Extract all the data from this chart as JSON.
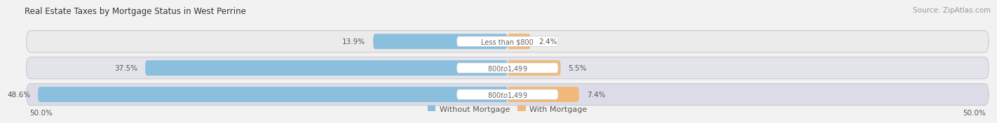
{
  "title": "Real Estate Taxes by Mortgage Status in West Perrine",
  "source": "Source: ZipAtlas.com",
  "rows": [
    {
      "label": "Less than $800",
      "without_mortgage": 13.9,
      "with_mortgage": 2.4
    },
    {
      "label": "$800 to $1,499",
      "without_mortgage": 37.5,
      "with_mortgage": 5.5
    },
    {
      "label": "$800 to $1,499",
      "without_mortgage": 48.6,
      "with_mortgage": 7.4
    }
  ],
  "x_min": -50.0,
  "x_max": 50.0,
  "x_left_label": "50.0%",
  "x_right_label": "50.0%",
  "color_without": "#8bbfde",
  "color_with": "#f0b87a",
  "bar_height": 0.58,
  "row_bg_colors": [
    "#ebebeb",
    "#e3e3ec",
    "#dcdce8"
  ],
  "pill_bg_color": "#f7f7f7",
  "legend_label_without": "Without Mortgage",
  "legend_label_with": "With Mortgage",
  "title_fontsize": 8.5,
  "source_fontsize": 7.5,
  "bar_label_fontsize": 7.5,
  "cat_label_fontsize": 7.0,
  "tick_fontsize": 7.5,
  "legend_fontsize": 8.0,
  "center_label_bg": "#ffffff"
}
